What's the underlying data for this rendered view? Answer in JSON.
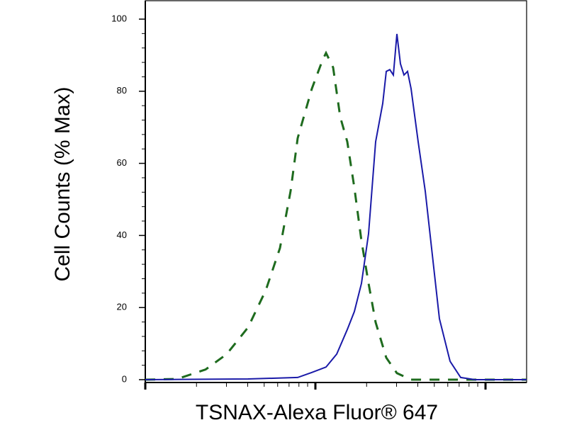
{
  "chart_data": {
    "type": "line",
    "xlabel": "TSNAX-Alexa Fluor® 647",
    "ylabel": "Cell Counts (% Max)",
    "xscale": "log",
    "xlim": [
      100,
      17440
    ],
    "xticks": [
      100,
      1000,
      10000
    ],
    "xminorticks": [
      200,
      300,
      400,
      500,
      600,
      700,
      800,
      900,
      2000,
      3000,
      4000,
      5000,
      6000,
      7000,
      8000,
      9000
    ],
    "ylim": [
      0,
      100
    ],
    "yticks": [
      0,
      20,
      40,
      60,
      80,
      100
    ],
    "yminorticks": [
      4,
      8,
      12,
      16,
      24,
      28,
      32,
      36,
      44,
      48,
      52,
      56,
      64,
      68,
      72,
      76,
      84,
      88,
      92,
      96
    ],
    "series": [
      {
        "color": "#1e6b1e",
        "dashed": true,
        "x": [
          100,
          154,
          226,
          301,
          402,
          511,
          619,
          715,
          787,
          953,
          1101,
          1155,
          1271,
          1399,
          1540,
          1694,
          1866,
          2054,
          2260,
          2610,
          3013,
          3652,
          17440
        ],
        "values": [
          0,
          0.2,
          2.8,
          7.1,
          14.5,
          24.8,
          36.5,
          52.3,
          67,
          80.7,
          88.6,
          90.6,
          86.6,
          72.9,
          66,
          53.2,
          38.5,
          26.7,
          15.9,
          6.1,
          1.8,
          0,
          0
        ]
      },
      {
        "color": "#1a1aa8",
        "dashed": false,
        "x": [
          100,
          402,
          787,
          953,
          1155,
          1334,
          1540,
          1694,
          1866,
          2054,
          2260,
          2488,
          2610,
          2738,
          2872,
          3013,
          3162,
          3317,
          3481,
          3652,
          4019,
          4422,
          4870,
          5358,
          6190,
          7145,
          8660,
          17440
        ],
        "values": [
          0,
          0.2,
          0.6,
          2.0,
          3.5,
          7.1,
          13.9,
          18.9,
          26.7,
          40.5,
          66,
          76.6,
          85.5,
          86,
          84.5,
          95.9,
          87.6,
          84.5,
          85.5,
          80.7,
          66,
          52.3,
          34.6,
          16.9,
          5.1,
          0.6,
          0,
          0
        ]
      }
    ]
  }
}
